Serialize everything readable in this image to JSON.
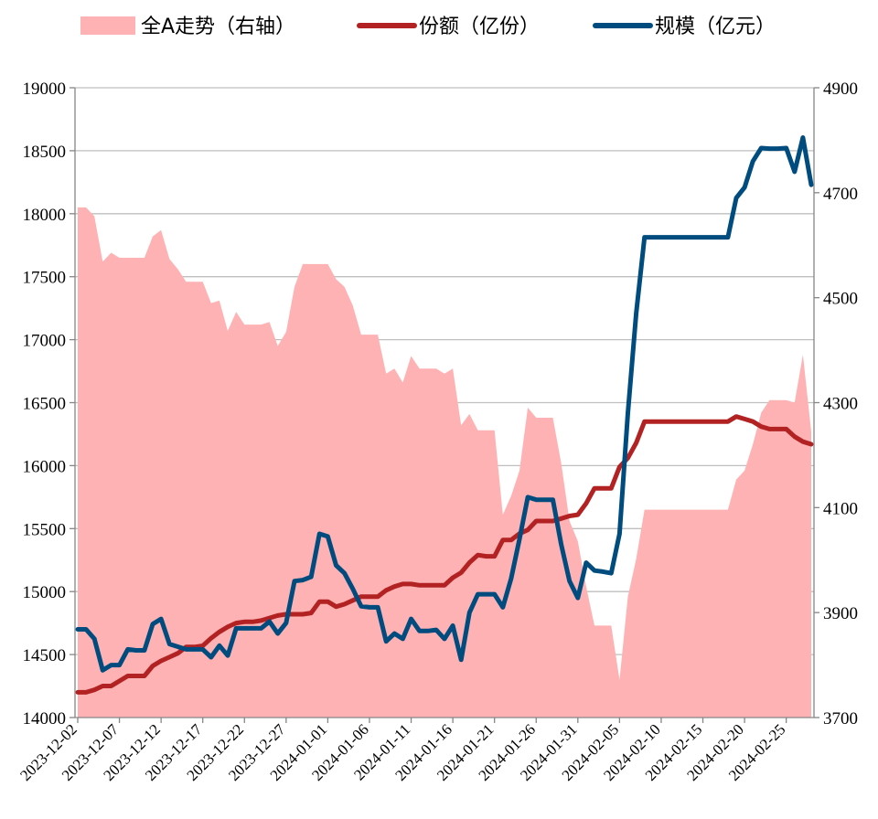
{
  "legend": {
    "index_label": "全A走势（右轴）",
    "shares_label": "份额（亿份）",
    "scale_label": "规模（亿元）"
  },
  "colors": {
    "index_fill": "#FFB2B4",
    "shares": "#B22222",
    "scale": "#004C7F",
    "grid": "#BFBFBF"
  },
  "chart_data": {
    "type": "line",
    "x_tick_labels": [
      "2023-12-02",
      "2023-12-07",
      "2023-12-12",
      "2023-12-17",
      "2023-12-22",
      "2023-12-27",
      "2024-01-01",
      "2024-01-06",
      "2024-01-11",
      "2024-01-16",
      "2024-01-21",
      "2024-01-26",
      "2024-01-31",
      "2024-02-05",
      "2024-02-10",
      "2024-02-15",
      "2024-02-20",
      "2024-02-25"
    ],
    "x_start": "2023-12-02",
    "x_end": "2024-02-28",
    "y_left": {
      "ticks": [
        14000,
        14500,
        15000,
        15500,
        16000,
        16500,
        17000,
        17500,
        18000,
        18500,
        19000
      ],
      "lim": [
        14000,
        19000
      ]
    },
    "y_right": {
      "ticks": [
        3700,
        3900,
        4100,
        4300,
        4500,
        4700,
        4900
      ],
      "lim": [
        3700,
        4900
      ]
    },
    "series": [
      {
        "name": "全A走势（右轴）",
        "kind": "area",
        "axis": "left",
        "points": [
          [
            "2023-12-02",
            18050
          ],
          [
            "2023-12-03",
            18050
          ],
          [
            "2023-12-04",
            17980
          ],
          [
            "2023-12-05",
            17620
          ],
          [
            "2023-12-06",
            17690
          ],
          [
            "2023-12-07",
            17650
          ],
          [
            "2023-12-08",
            17650
          ],
          [
            "2023-12-09",
            17650
          ],
          [
            "2023-12-10",
            17650
          ],
          [
            "2023-12-11",
            17820
          ],
          [
            "2023-12-12",
            17870
          ],
          [
            "2023-12-13",
            17640
          ],
          [
            "2023-12-14",
            17560
          ],
          [
            "2023-12-15",
            17460
          ],
          [
            "2023-12-16",
            17460
          ],
          [
            "2023-12-17",
            17460
          ],
          [
            "2023-12-18",
            17290
          ],
          [
            "2023-12-19",
            17310
          ],
          [
            "2023-12-20",
            17070
          ],
          [
            "2023-12-21",
            17220
          ],
          [
            "2023-12-22",
            17120
          ],
          [
            "2023-12-23",
            17120
          ],
          [
            "2023-12-24",
            17120
          ],
          [
            "2023-12-25",
            17140
          ],
          [
            "2023-12-26",
            16950
          ],
          [
            "2023-12-27",
            17060
          ],
          [
            "2023-12-28",
            17420
          ],
          [
            "2023-12-29",
            17600
          ],
          [
            "2023-12-30",
            17600
          ],
          [
            "2023-12-31",
            17600
          ],
          [
            "2024-01-01",
            17600
          ],
          [
            "2024-01-02",
            17480
          ],
          [
            "2024-01-03",
            17420
          ],
          [
            "2024-01-04",
            17270
          ],
          [
            "2024-01-05",
            17040
          ],
          [
            "2024-01-06",
            17040
          ],
          [
            "2024-01-07",
            17040
          ],
          [
            "2024-01-08",
            16730
          ],
          [
            "2024-01-09",
            16770
          ],
          [
            "2024-01-10",
            16660
          ],
          [
            "2024-01-11",
            16870
          ],
          [
            "2024-01-12",
            16770
          ],
          [
            "2024-01-13",
            16770
          ],
          [
            "2024-01-14",
            16770
          ],
          [
            "2024-01-15",
            16730
          ],
          [
            "2024-01-16",
            16770
          ],
          [
            "2024-01-17",
            16320
          ],
          [
            "2024-01-18",
            16410
          ],
          [
            "2024-01-19",
            16280
          ],
          [
            "2024-01-20",
            16280
          ],
          [
            "2024-01-21",
            16280
          ],
          [
            "2024-01-22",
            15610
          ],
          [
            "2024-01-23",
            15760
          ],
          [
            "2024-01-24",
            15960
          ],
          [
            "2024-01-25",
            16460
          ],
          [
            "2024-01-26",
            16380
          ],
          [
            "2024-01-27",
            16380
          ],
          [
            "2024-01-28",
            16380
          ],
          [
            "2024-01-29",
            16020
          ],
          [
            "2024-01-30",
            15560
          ],
          [
            "2024-01-31",
            15400
          ],
          [
            "2024-02-01",
            15040
          ],
          [
            "2024-02-02",
            14730
          ],
          [
            "2024-02-03",
            14730
          ],
          [
            "2024-02-04",
            14730
          ],
          [
            "2024-02-05",
            14300
          ],
          [
            "2024-02-06",
            14960
          ],
          [
            "2024-02-07",
            15260
          ],
          [
            "2024-02-08",
            15650
          ],
          [
            "2024-02-09",
            15650
          ],
          [
            "2024-02-10",
            15650
          ],
          [
            "2024-02-11",
            15650
          ],
          [
            "2024-02-12",
            15650
          ],
          [
            "2024-02-13",
            15650
          ],
          [
            "2024-02-14",
            15650
          ],
          [
            "2024-02-15",
            15650
          ],
          [
            "2024-02-16",
            15650
          ],
          [
            "2024-02-17",
            15650
          ],
          [
            "2024-02-18",
            15650
          ],
          [
            "2024-02-19",
            15890
          ],
          [
            "2024-02-20",
            15960
          ],
          [
            "2024-02-21",
            16170
          ],
          [
            "2024-02-22",
            16420
          ],
          [
            "2024-02-23",
            16520
          ],
          [
            "2024-02-24",
            16520
          ],
          [
            "2024-02-25",
            16520
          ],
          [
            "2024-02-26",
            16500
          ],
          [
            "2024-02-27",
            16880
          ],
          [
            "2024-02-28",
            16270
          ]
        ]
      },
      {
        "name": "份额（亿份）",
        "kind": "line",
        "axis": "left",
        "points": [
          [
            "2023-12-02",
            14200
          ],
          [
            "2023-12-03",
            14200
          ],
          [
            "2023-12-04",
            14220
          ],
          [
            "2023-12-05",
            14250
          ],
          [
            "2023-12-06",
            14250
          ],
          [
            "2023-12-07",
            14290
          ],
          [
            "2023-12-08",
            14330
          ],
          [
            "2023-12-09",
            14330
          ],
          [
            "2023-12-10",
            14330
          ],
          [
            "2023-12-11",
            14410
          ],
          [
            "2023-12-12",
            14450
          ],
          [
            "2023-12-13",
            14480
          ],
          [
            "2023-12-14",
            14510
          ],
          [
            "2023-12-15",
            14560
          ],
          [
            "2023-12-16",
            14560
          ],
          [
            "2023-12-17",
            14570
          ],
          [
            "2023-12-18",
            14630
          ],
          [
            "2023-12-19",
            14680
          ],
          [
            "2023-12-20",
            14720
          ],
          [
            "2023-12-21",
            14750
          ],
          [
            "2023-12-22",
            14760
          ],
          [
            "2023-12-23",
            14760
          ],
          [
            "2023-12-24",
            14770
          ],
          [
            "2023-12-25",
            14790
          ],
          [
            "2023-12-26",
            14810
          ],
          [
            "2023-12-27",
            14820
          ],
          [
            "2023-12-28",
            14820
          ],
          [
            "2023-12-29",
            14820
          ],
          [
            "2023-12-30",
            14830
          ],
          [
            "2023-12-31",
            14920
          ],
          [
            "2024-01-01",
            14920
          ],
          [
            "2024-01-02",
            14880
          ],
          [
            "2024-01-03",
            14900
          ],
          [
            "2024-01-04",
            14930
          ],
          [
            "2024-01-05",
            14960
          ],
          [
            "2024-01-06",
            14960
          ],
          [
            "2024-01-07",
            14960
          ],
          [
            "2024-01-08",
            15010
          ],
          [
            "2024-01-09",
            15040
          ],
          [
            "2024-01-10",
            15060
          ],
          [
            "2024-01-11",
            15060
          ],
          [
            "2024-01-12",
            15050
          ],
          [
            "2024-01-13",
            15050
          ],
          [
            "2024-01-14",
            15050
          ],
          [
            "2024-01-15",
            15050
          ],
          [
            "2024-01-16",
            15110
          ],
          [
            "2024-01-17",
            15150
          ],
          [
            "2024-01-18",
            15230
          ],
          [
            "2024-01-19",
            15290
          ],
          [
            "2024-01-20",
            15280
          ],
          [
            "2024-01-21",
            15280
          ],
          [
            "2024-01-22",
            15410
          ],
          [
            "2024-01-23",
            15410
          ],
          [
            "2024-01-24",
            15460
          ],
          [
            "2024-01-25",
            15490
          ],
          [
            "2024-01-26",
            15560
          ],
          [
            "2024-01-27",
            15560
          ],
          [
            "2024-01-28",
            15560
          ],
          [
            "2024-01-29",
            15580
          ],
          [
            "2024-01-30",
            15600
          ],
          [
            "2024-01-31",
            15610
          ],
          [
            "2024-02-01",
            15700
          ],
          [
            "2024-02-02",
            15820
          ],
          [
            "2024-02-03",
            15820
          ],
          [
            "2024-02-04",
            15820
          ],
          [
            "2024-02-05",
            15990
          ],
          [
            "2024-02-06",
            16060
          ],
          [
            "2024-02-07",
            16180
          ],
          [
            "2024-02-08",
            16350
          ],
          [
            "2024-02-09",
            16350
          ],
          [
            "2024-02-10",
            16350
          ],
          [
            "2024-02-11",
            16350
          ],
          [
            "2024-02-12",
            16350
          ],
          [
            "2024-02-13",
            16350
          ],
          [
            "2024-02-14",
            16350
          ],
          [
            "2024-02-15",
            16350
          ],
          [
            "2024-02-16",
            16350
          ],
          [
            "2024-02-17",
            16350
          ],
          [
            "2024-02-18",
            16350
          ],
          [
            "2024-02-19",
            16390
          ],
          [
            "2024-02-20",
            16370
          ],
          [
            "2024-02-21",
            16350
          ],
          [
            "2024-02-22",
            16310
          ],
          [
            "2024-02-23",
            16290
          ],
          [
            "2024-02-24",
            16290
          ],
          [
            "2024-02-25",
            16290
          ],
          [
            "2024-02-26",
            16230
          ],
          [
            "2024-02-27",
            16190
          ],
          [
            "2024-02-28",
            16170
          ]
        ]
      },
      {
        "name": "规模（亿元）",
        "kind": "line",
        "axis": "right",
        "points": [
          [
            "2023-12-02",
            3868
          ],
          [
            "2023-12-03",
            3868
          ],
          [
            "2023-12-04",
            3850
          ],
          [
            "2023-12-05",
            3790
          ],
          [
            "2023-12-06",
            3800
          ],
          [
            "2023-12-07",
            3800
          ],
          [
            "2023-12-08",
            3830
          ],
          [
            "2023-12-09",
            3828
          ],
          [
            "2023-12-10",
            3828
          ],
          [
            "2023-12-11",
            3878
          ],
          [
            "2023-12-12",
            3888
          ],
          [
            "2023-12-13",
            3840
          ],
          [
            "2023-12-14",
            3835
          ],
          [
            "2023-12-15",
            3830
          ],
          [
            "2023-12-16",
            3830
          ],
          [
            "2023-12-17",
            3830
          ],
          [
            "2023-12-18",
            3815
          ],
          [
            "2023-12-19",
            3837
          ],
          [
            "2023-12-20",
            3818
          ],
          [
            "2023-12-21",
            3870
          ],
          [
            "2023-12-22",
            3870
          ],
          [
            "2023-12-23",
            3870
          ],
          [
            "2023-12-24",
            3870
          ],
          [
            "2023-12-25",
            3883
          ],
          [
            "2023-12-26",
            3860
          ],
          [
            "2023-12-27",
            3880
          ],
          [
            "2023-12-28",
            3960
          ],
          [
            "2023-12-29",
            3962
          ],
          [
            "2023-12-30",
            3968
          ],
          [
            "2023-12-31",
            4050
          ],
          [
            "2024-01-01",
            4045
          ],
          [
            "2024-01-02",
            3990
          ],
          [
            "2024-01-03",
            3975
          ],
          [
            "2024-01-04",
            3945
          ],
          [
            "2024-01-05",
            3912
          ],
          [
            "2024-01-06",
            3910
          ],
          [
            "2024-01-07",
            3910
          ],
          [
            "2024-01-08",
            3845
          ],
          [
            "2024-01-09",
            3860
          ],
          [
            "2024-01-10",
            3850
          ],
          [
            "2024-01-11",
            3888
          ],
          [
            "2024-01-12",
            3865
          ],
          [
            "2024-01-13",
            3865
          ],
          [
            "2024-01-14",
            3867
          ],
          [
            "2024-01-15",
            3850
          ],
          [
            "2024-01-16",
            3875
          ],
          [
            "2024-01-17",
            3810
          ],
          [
            "2024-01-18",
            3900
          ],
          [
            "2024-01-19",
            3935
          ],
          [
            "2024-01-20",
            3935
          ],
          [
            "2024-01-21",
            3935
          ],
          [
            "2024-01-22",
            3910
          ],
          [
            "2024-01-23",
            3965
          ],
          [
            "2024-01-24",
            4040
          ],
          [
            "2024-01-25",
            4120
          ],
          [
            "2024-01-26",
            4115
          ],
          [
            "2024-01-27",
            4115
          ],
          [
            "2024-01-28",
            4115
          ],
          [
            "2024-01-29",
            4030
          ],
          [
            "2024-01-30",
            3960
          ],
          [
            "2024-01-31",
            3928
          ],
          [
            "2024-02-01",
            3995
          ],
          [
            "2024-02-02",
            3980
          ],
          [
            "2024-02-03",
            3978
          ],
          [
            "2024-02-04",
            3975
          ],
          [
            "2024-02-05",
            4050
          ],
          [
            "2024-02-06",
            4280
          ],
          [
            "2024-02-07",
            4470
          ],
          [
            "2024-02-08",
            4615
          ],
          [
            "2024-02-09",
            4615
          ],
          [
            "2024-02-10",
            4615
          ],
          [
            "2024-02-11",
            4615
          ],
          [
            "2024-02-12",
            4615
          ],
          [
            "2024-02-13",
            4615
          ],
          [
            "2024-02-14",
            4615
          ],
          [
            "2024-02-15",
            4615
          ],
          [
            "2024-02-16",
            4615
          ],
          [
            "2024-02-17",
            4615
          ],
          [
            "2024-02-18",
            4615
          ],
          [
            "2024-02-19",
            4690
          ],
          [
            "2024-02-20",
            4710
          ],
          [
            "2024-02-21",
            4760
          ],
          [
            "2024-02-22",
            4785
          ],
          [
            "2024-02-23",
            4784
          ],
          [
            "2024-02-24",
            4784
          ],
          [
            "2024-02-25",
            4785
          ],
          [
            "2024-02-26",
            4740
          ],
          [
            "2024-02-27",
            4805
          ],
          [
            "2024-02-28",
            4715
          ]
        ]
      }
    ]
  }
}
